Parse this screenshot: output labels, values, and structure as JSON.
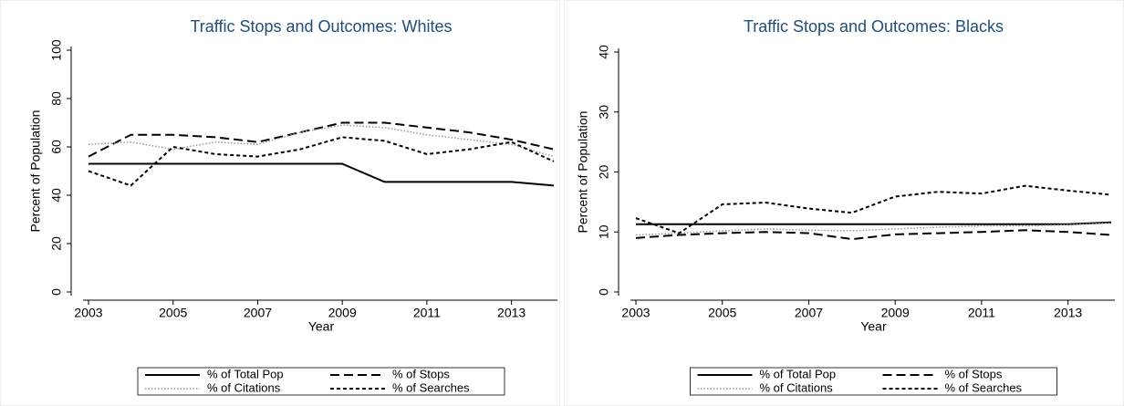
{
  "chart_data": [
    {
      "type": "line",
      "title": "Traffic Stops and Outcomes: Whites",
      "xlabel": "Year",
      "ylabel": "Percent of Population",
      "x": [
        2003,
        2004,
        2005,
        2006,
        2007,
        2008,
        2009,
        2010,
        2011,
        2012,
        2013,
        2014
      ],
      "xlim": [
        2003,
        2014
      ],
      "xticks": [
        2003,
        2005,
        2007,
        2009,
        2011,
        2013
      ],
      "ylim": [
        0,
        100
      ],
      "yticks": [
        0,
        20,
        40,
        60,
        80,
        100
      ],
      "series": [
        {
          "name": "% of Total Pop",
          "color": "#000000",
          "style": "solid",
          "values": [
            53,
            53,
            53,
            53,
            53,
            53,
            53,
            45.5,
            45.5,
            45.5,
            45.5,
            44
          ]
        },
        {
          "name": "% of Stops",
          "color": "#000000",
          "style": "longdash",
          "values": [
            56,
            65,
            65,
            64,
            62,
            66,
            70,
            70,
            68,
            66,
            63,
            59
          ]
        },
        {
          "name": "% of Citations",
          "color": "#999999",
          "style": "dot",
          "values": [
            61,
            62,
            59,
            62,
            61,
            66,
            69,
            68,
            65,
            63,
            61,
            56
          ]
        },
        {
          "name": "% of Searches",
          "color": "#000000",
          "style": "shortdash",
          "values": [
            50,
            44,
            60,
            57,
            56,
            59,
            64,
            62.5,
            57,
            59,
            62,
            54
          ]
        }
      ]
    },
    {
      "type": "line",
      "title": "Traffic Stops and Outcomes: Blacks",
      "xlabel": "Year",
      "ylabel": "Percent of Population",
      "x": [
        2003,
        2004,
        2005,
        2006,
        2007,
        2008,
        2009,
        2010,
        2011,
        2012,
        2013,
        2014
      ],
      "xlim": [
        2003,
        2014
      ],
      "xticks": [
        2003,
        2005,
        2007,
        2009,
        2011,
        2013
      ],
      "ylim": [
        0,
        40
      ],
      "yticks": [
        0,
        10,
        20,
        30,
        40
      ],
      "series": [
        {
          "name": "% of Total Pop",
          "color": "#000000",
          "style": "solid",
          "values": [
            11.3,
            11.3,
            11.3,
            11.3,
            11.3,
            11.3,
            11.3,
            11.3,
            11.3,
            11.3,
            11.3,
            11.6
          ]
        },
        {
          "name": "% of Stops",
          "color": "#000000",
          "style": "longdash",
          "values": [
            9,
            9.5,
            9.8,
            10,
            9.8,
            8.8,
            9.6,
            9.8,
            10,
            10.3,
            10,
            9.5
          ]
        },
        {
          "name": "% of Citations",
          "color": "#999999",
          "style": "dot",
          "values": [
            9.5,
            9.8,
            10.2,
            10.5,
            10.3,
            10.2,
            10.5,
            10.8,
            11,
            11,
            11.2,
            11.5
          ]
        },
        {
          "name": "% of Searches",
          "color": "#000000",
          "style": "shortdash",
          "values": [
            12.3,
            9.8,
            14.6,
            14.9,
            13.9,
            13.2,
            15.9,
            16.7,
            16.4,
            17.7,
            16.9,
            16.2
          ]
        }
      ]
    }
  ]
}
